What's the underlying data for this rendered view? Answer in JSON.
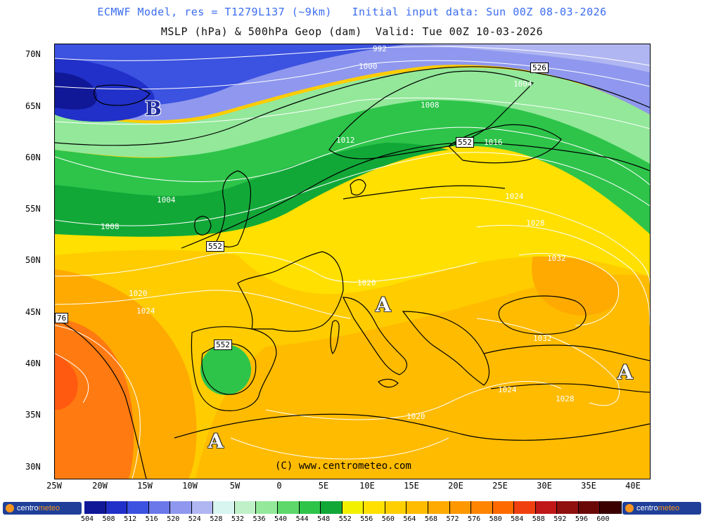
{
  "titles": {
    "line1": "ECMWF Model, res = T1279L137 (~9km)   Initial input data: Sun 00Z 08-03-2026",
    "line2": "MSLP (hPa) & 500hPa Geop (dam)  Valid: Tue 00Z 10-03-2026"
  },
  "lat_labels": [
    "70N",
    "65N",
    "60N",
    "55N",
    "50N",
    "45N",
    "40N",
    "35N",
    "30N"
  ],
  "lon_labels": [
    "25W",
    "20W",
    "15W",
    "10W",
    "5W",
    "0",
    "5E",
    "10E",
    "15E",
    "20E",
    "25E",
    "30E",
    "35E",
    "40E"
  ],
  "pressure_labels": [
    "992",
    "1000",
    "1004",
    "1008",
    "1012",
    "1016",
    "1004",
    "1008",
    "1020",
    "1024",
    "1020",
    "1024",
    "1028",
    "1032",
    "1032",
    "1028",
    "1024",
    "1020"
  ],
  "geop_labels": [
    "552",
    "552",
    "552",
    "526",
    "76"
  ],
  "pressure_centers": [
    "B",
    "A",
    "A",
    "A"
  ],
  "copyright": "(C) www.centrometeo.com",
  "logo": {
    "left_a": "centro",
    "left_b": "meteo",
    "right_a": "centro",
    "right_b": "meteo"
  },
  "colorbar": {
    "values": [
      "504",
      "508",
      "512",
      "516",
      "520",
      "524",
      "528",
      "532",
      "536",
      "540",
      "544",
      "548",
      "552",
      "556",
      "560",
      "564",
      "568",
      "572",
      "576",
      "580",
      "584",
      "588",
      "592",
      "596",
      "600"
    ],
    "colors": [
      "#101898",
      "#2030c8",
      "#3c52e0",
      "#6a78ea",
      "#8f98ee",
      "#b0b6f2",
      "#d8f5f0",
      "#bff0c8",
      "#93e89a",
      "#5ed86a",
      "#2ec44a",
      "#12a838",
      "#f2f200",
      "#ffe000",
      "#ffcf00",
      "#ffbc00",
      "#ffaa00",
      "#ff9800",
      "#ff8400",
      "#ff6a00",
      "#f04010",
      "#c01818",
      "#901010",
      "#6a0808",
      "#3a0000"
    ]
  },
  "colors": {
    "title_blue": "#3a6cf0",
    "land_outline": "#000000"
  }
}
